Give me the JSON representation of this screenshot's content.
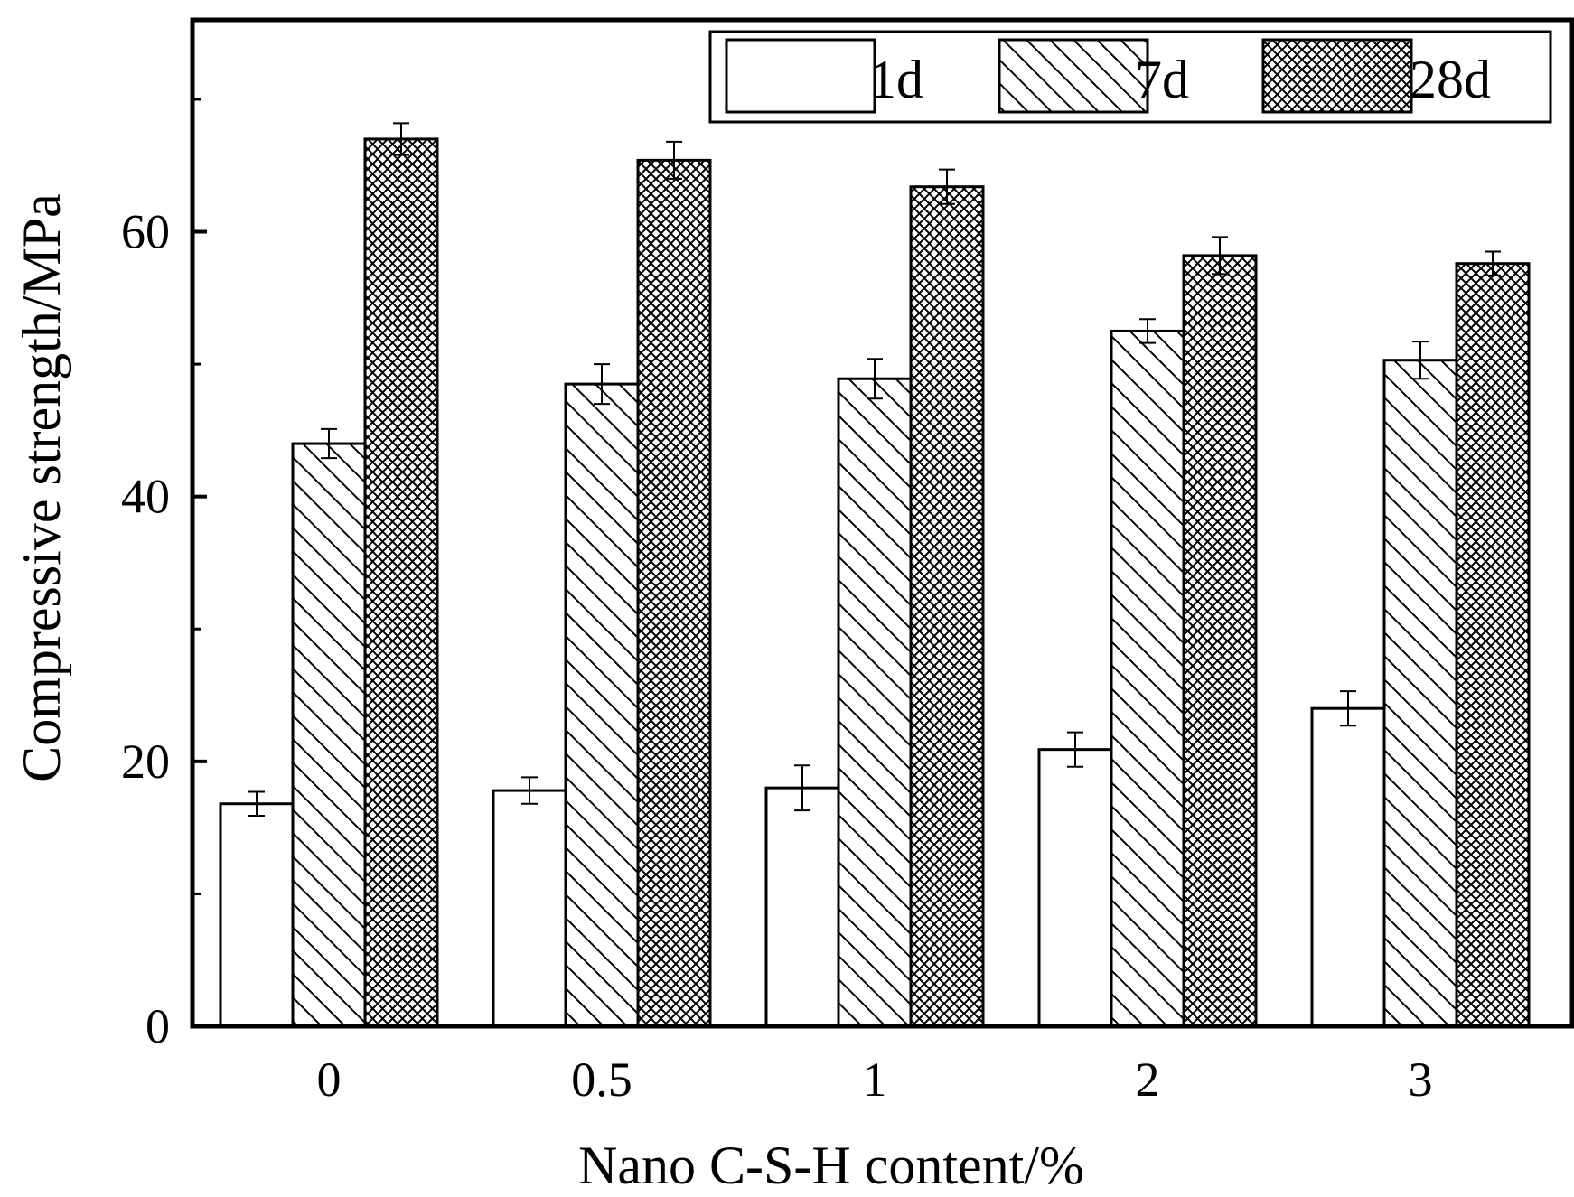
{
  "chart_data": {
    "type": "bar",
    "title": "",
    "xlabel": "Nano C-S-H content/%",
    "ylabel": "Compressive strength/MPa",
    "categories": [
      "0",
      "0.5",
      "1",
      "2",
      "3"
    ],
    "ylim": [
      0,
      76
    ],
    "yticks": [
      "0",
      "20",
      "40",
      "60"
    ],
    "y_minor_ticks": [
      10,
      30,
      50,
      70
    ],
    "legend_position": "top-right",
    "series": [
      {
        "name": "1d",
        "pattern": "none",
        "values": [
          16.8,
          17.8,
          18.0,
          20.9,
          24.0
        ],
        "errors": [
          0.9,
          1.0,
          1.7,
          1.3,
          1.3
        ]
      },
      {
        "name": "7d",
        "pattern": "diagonal",
        "values": [
          44.0,
          48.5,
          48.9,
          52.5,
          50.3
        ],
        "errors": [
          1.1,
          1.5,
          1.5,
          0.9,
          1.4
        ]
      },
      {
        "name": "28d",
        "pattern": "crosshatch",
        "values": [
          67.0,
          65.4,
          63.4,
          58.2,
          57.6
        ],
        "errors": [
          1.2,
          1.4,
          1.3,
          1.4,
          0.9
        ]
      }
    ]
  }
}
